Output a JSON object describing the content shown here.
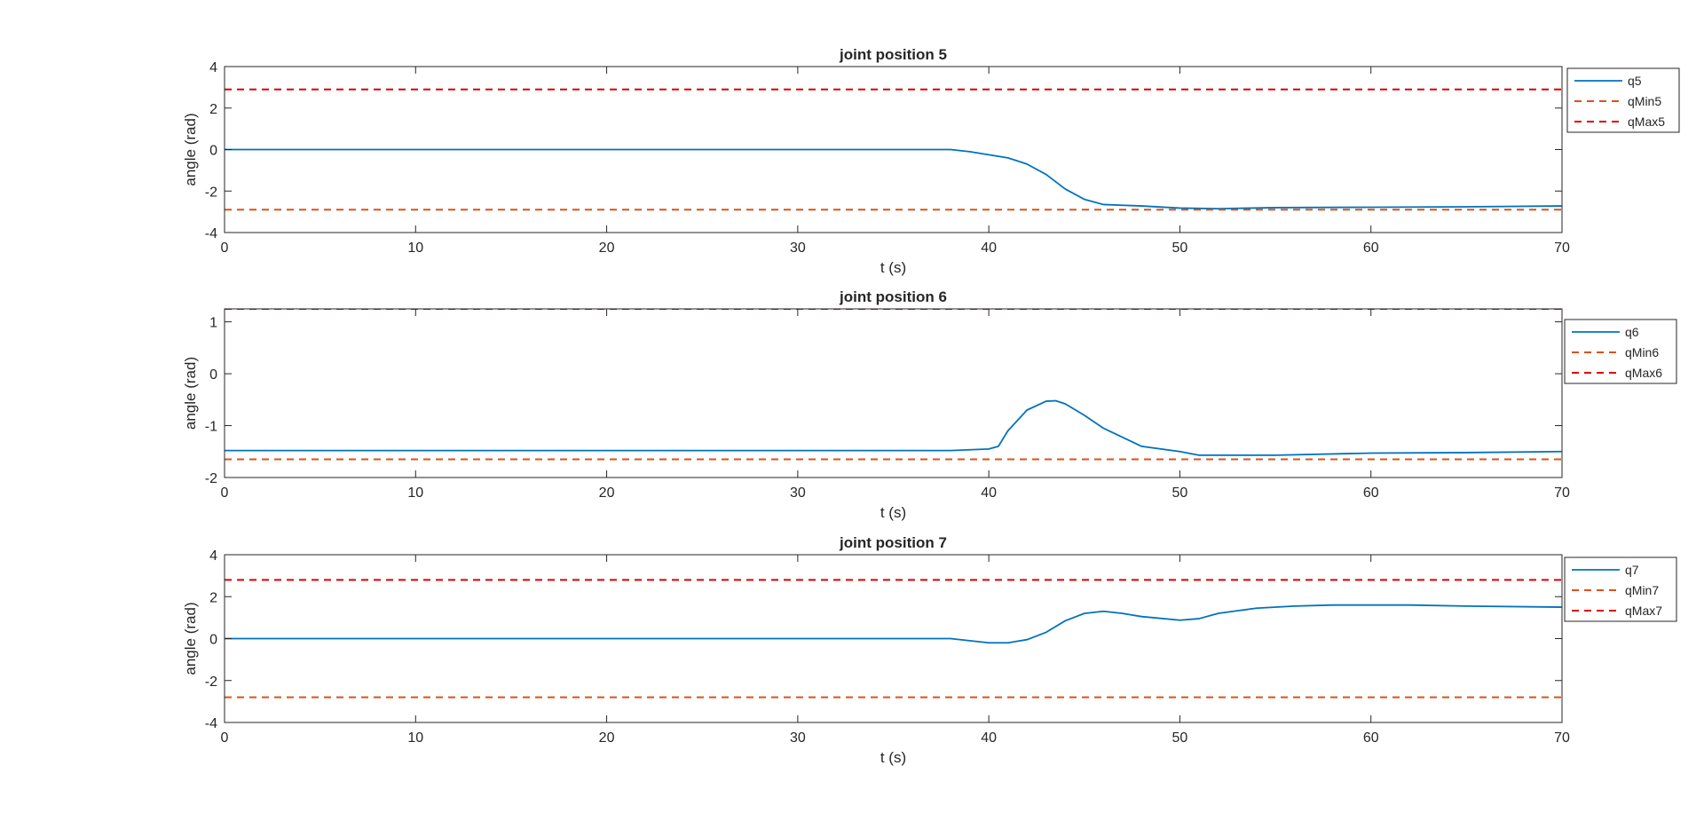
{
  "figure": {
    "background": "#ffffff"
  },
  "chart_data": [
    {
      "type": "line",
      "title": "joint position 5",
      "xlabel": "t (s)",
      "ylabel": "angle (rad)",
      "xlim": [
        0,
        70
      ],
      "ylim": [
        -4,
        4
      ],
      "xticks": [
        0,
        10,
        20,
        30,
        40,
        50,
        60,
        70
      ],
      "yticks": [
        -4,
        -2,
        0,
        2,
        4
      ],
      "grid": false,
      "legend_position": "outside-right",
      "series": [
        {
          "name": "q5",
          "color": "#0072BD",
          "style": "solid",
          "x": [
            0,
            38,
            39,
            40,
            41,
            42,
            43,
            44,
            45,
            46,
            48,
            50,
            52,
            55,
            60,
            65,
            70
          ],
          "y": [
            0,
            0,
            -0.1,
            -0.25,
            -0.4,
            -0.7,
            -1.2,
            -1.9,
            -2.4,
            -2.65,
            -2.72,
            -2.82,
            -2.85,
            -2.8,
            -2.78,
            -2.76,
            -2.72
          ]
        },
        {
          "name": "qMin5",
          "color": "#D95319",
          "style": "dashed",
          "x": [
            0,
            70
          ],
          "y": [
            -2.9,
            -2.9
          ]
        },
        {
          "name": "qMax5",
          "color": "#DD0000",
          "style": "dashed",
          "x": [
            0,
            70
          ],
          "y": [
            2.9,
            2.9
          ]
        }
      ]
    },
    {
      "type": "line",
      "title": "joint position 6",
      "xlabel": "t (s)",
      "ylabel": "angle (rad)",
      "xlim": [
        0,
        70
      ],
      "ylim": [
        -2,
        1.25
      ],
      "xticks": [
        0,
        10,
        20,
        30,
        40,
        50,
        60,
        70
      ],
      "yticks": [
        -2,
        -1,
        0,
        1
      ],
      "grid": false,
      "legend_position": "outside-right",
      "series": [
        {
          "name": "q6",
          "color": "#0072BD",
          "style": "solid",
          "x": [
            0,
            38,
            40,
            40.5,
            41,
            42,
            43,
            43.5,
            44,
            45,
            46,
            48,
            50,
            51,
            52,
            55,
            60,
            65,
            70
          ],
          "y": [
            -1.48,
            -1.48,
            -1.45,
            -1.4,
            -1.1,
            -0.7,
            -0.53,
            -0.52,
            -0.58,
            -0.8,
            -1.05,
            -1.4,
            -1.5,
            -1.57,
            -1.57,
            -1.57,
            -1.53,
            -1.52,
            -1.5
          ]
        },
        {
          "name": "qMin6",
          "color": "#D95319",
          "style": "dashed",
          "x": [
            0,
            70
          ],
          "y": [
            -1.65,
            -1.65
          ]
        },
        {
          "name": "qMax6",
          "color": "#DD0000",
          "style": "dashed",
          "x": [
            0,
            70
          ],
          "y": [
            1.25,
            1.25
          ]
        }
      ]
    },
    {
      "type": "line",
      "title": "joint position 7",
      "xlabel": "t (s)",
      "ylabel": "angle (rad)",
      "xlim": [
        0,
        70
      ],
      "ylim": [
        -4,
        4
      ],
      "xticks": [
        0,
        10,
        20,
        30,
        40,
        50,
        60,
        70
      ],
      "yticks": [
        -4,
        -2,
        0,
        2,
        4
      ],
      "grid": false,
      "legend_position": "outside-right",
      "series": [
        {
          "name": "q7",
          "color": "#0072BD",
          "style": "solid",
          "x": [
            0,
            38,
            39,
            40,
            41,
            42,
            43,
            44,
            45,
            46,
            47,
            48,
            50,
            51,
            52,
            54,
            56,
            58,
            60,
            62,
            65,
            70
          ],
          "y": [
            0,
            0,
            -0.1,
            -0.2,
            -0.2,
            -0.05,
            0.3,
            0.85,
            1.2,
            1.3,
            1.2,
            1.05,
            0.88,
            0.95,
            1.2,
            1.45,
            1.55,
            1.6,
            1.6,
            1.6,
            1.55,
            1.5
          ]
        },
        {
          "name": "qMin7",
          "color": "#D95319",
          "style": "dashed",
          "x": [
            0,
            70
          ],
          "y": [
            -2.8,
            -2.8
          ]
        },
        {
          "name": "qMax7",
          "color": "#DD0000",
          "style": "dashed",
          "x": [
            0,
            70
          ],
          "y": [
            2.8,
            2.8
          ]
        }
      ]
    }
  ]
}
